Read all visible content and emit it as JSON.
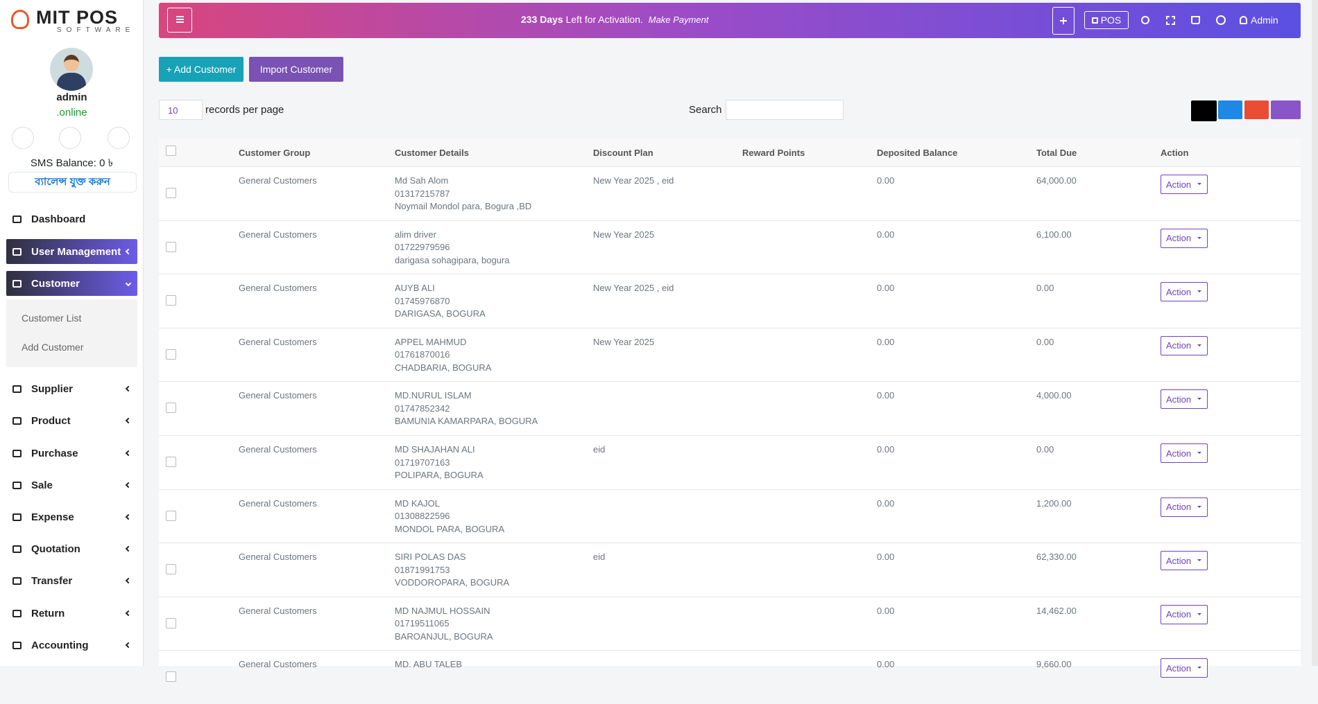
{
  "brand": {
    "name": "MIT POS",
    "tagline": "SOFTWARE"
  },
  "user": {
    "name": "admin",
    "status": ".online",
    "sms_balance": "SMS Balance: 0 ৳",
    "recharge": "ব্যালেন্স যুক্ত করুন"
  },
  "menu": [
    {
      "label": "Dashboard"
    },
    {
      "label": "User Management"
    },
    {
      "label": "Customer",
      "children": [
        "Customer List",
        "Add Customer"
      ]
    },
    {
      "label": "Supplier"
    },
    {
      "label": "Product"
    },
    {
      "label": "Purchase"
    },
    {
      "label": "Sale"
    },
    {
      "label": "Expense"
    },
    {
      "label": "Quotation"
    },
    {
      "label": "Transfer"
    },
    {
      "label": "Return"
    },
    {
      "label": "Accounting"
    }
  ],
  "topbar": {
    "days": "233 Days",
    "activation": "Left for Activation.",
    "payment": "Make Payment",
    "pos": "POS",
    "admin": "Admin"
  },
  "toolbar": {
    "add": "+ Add Customer",
    "import": "Import Customer",
    "page_size": "10",
    "records": "records per page",
    "search": "Search"
  },
  "table": {
    "columns": [
      "Customer Group",
      "Customer Details",
      "Discount Plan",
      "Reward Points",
      "Deposited Balance",
      "Total Due",
      "Action"
    ],
    "rows": [
      {
        "group": "General Customers",
        "name": "Md Sah Alom",
        "phone": "01317215787",
        "address": "Noymail Mondol para, Bogura ,BD",
        "discount": "New Year 2025 , eid",
        "deposited": "0.00",
        "due": "64,000.00",
        "action": "Action"
      },
      {
        "group": "General Customers",
        "name": "alim driver",
        "phone": "01722979596",
        "address": "darigasa sohagipara, bogura",
        "discount": "New Year 2025",
        "deposited": "0.00",
        "due": "6,100.00",
        "action": "Action"
      },
      {
        "group": "General Customers",
        "name": "AUYB ALI",
        "phone": "01745976870",
        "address": "DARIGASA, BOGURA",
        "discount": "New Year 2025 , eid",
        "deposited": "0.00",
        "due": "0.00",
        "action": "Action"
      },
      {
        "group": "General Customers",
        "name": "APPEL MAHMUD",
        "phone": "01761870016",
        "address": "CHADBARIA, BOGURA",
        "discount": "New Year 2025",
        "deposited": "0.00",
        "due": "0.00",
        "action": "Action"
      },
      {
        "group": "General Customers",
        "name": "MD.NURUL ISLAM",
        "phone": "01747852342",
        "address": "BAMUNIA KAMARPARA, BOGURA",
        "deposited": "0.00",
        "due": "4,000.00",
        "action": "Action"
      },
      {
        "group": "General Customers",
        "name": "MD SHAJAHAN ALI",
        "phone": "01719707163",
        "address": "POLIPARA, BOGURA",
        "discount": "eid",
        "deposited": "0.00",
        "due": "0.00",
        "action": "Action"
      },
      {
        "group": "General Customers",
        "name": "MD KAJOL",
        "phone": "01308822596",
        "address": "MONDOL PARA, BOGURA",
        "deposited": "0.00",
        "due": "1,200.00",
        "action": "Action"
      },
      {
        "group": "General Customers",
        "name": "SIRI POLAS DAS",
        "phone": "01871991753",
        "address": "VODDOROPARA, BOGURA",
        "discount": "eid",
        "deposited": "0.00",
        "due": "62,330.00",
        "action": "Action"
      },
      {
        "group": "General Customers",
        "name": "MD NAJMUL HOSSAIN",
        "phone": "01719511065",
        "address": "BAROANJUL, BOGURA",
        "deposited": "0.00",
        "due": "14,462.00",
        "action": "Action"
      },
      {
        "group": "General Customers",
        "name": "MD. ABU TALEB",
        "deposited": "0.00",
        "due": "9,660.00",
        "action": "Action"
      }
    ]
  }
}
